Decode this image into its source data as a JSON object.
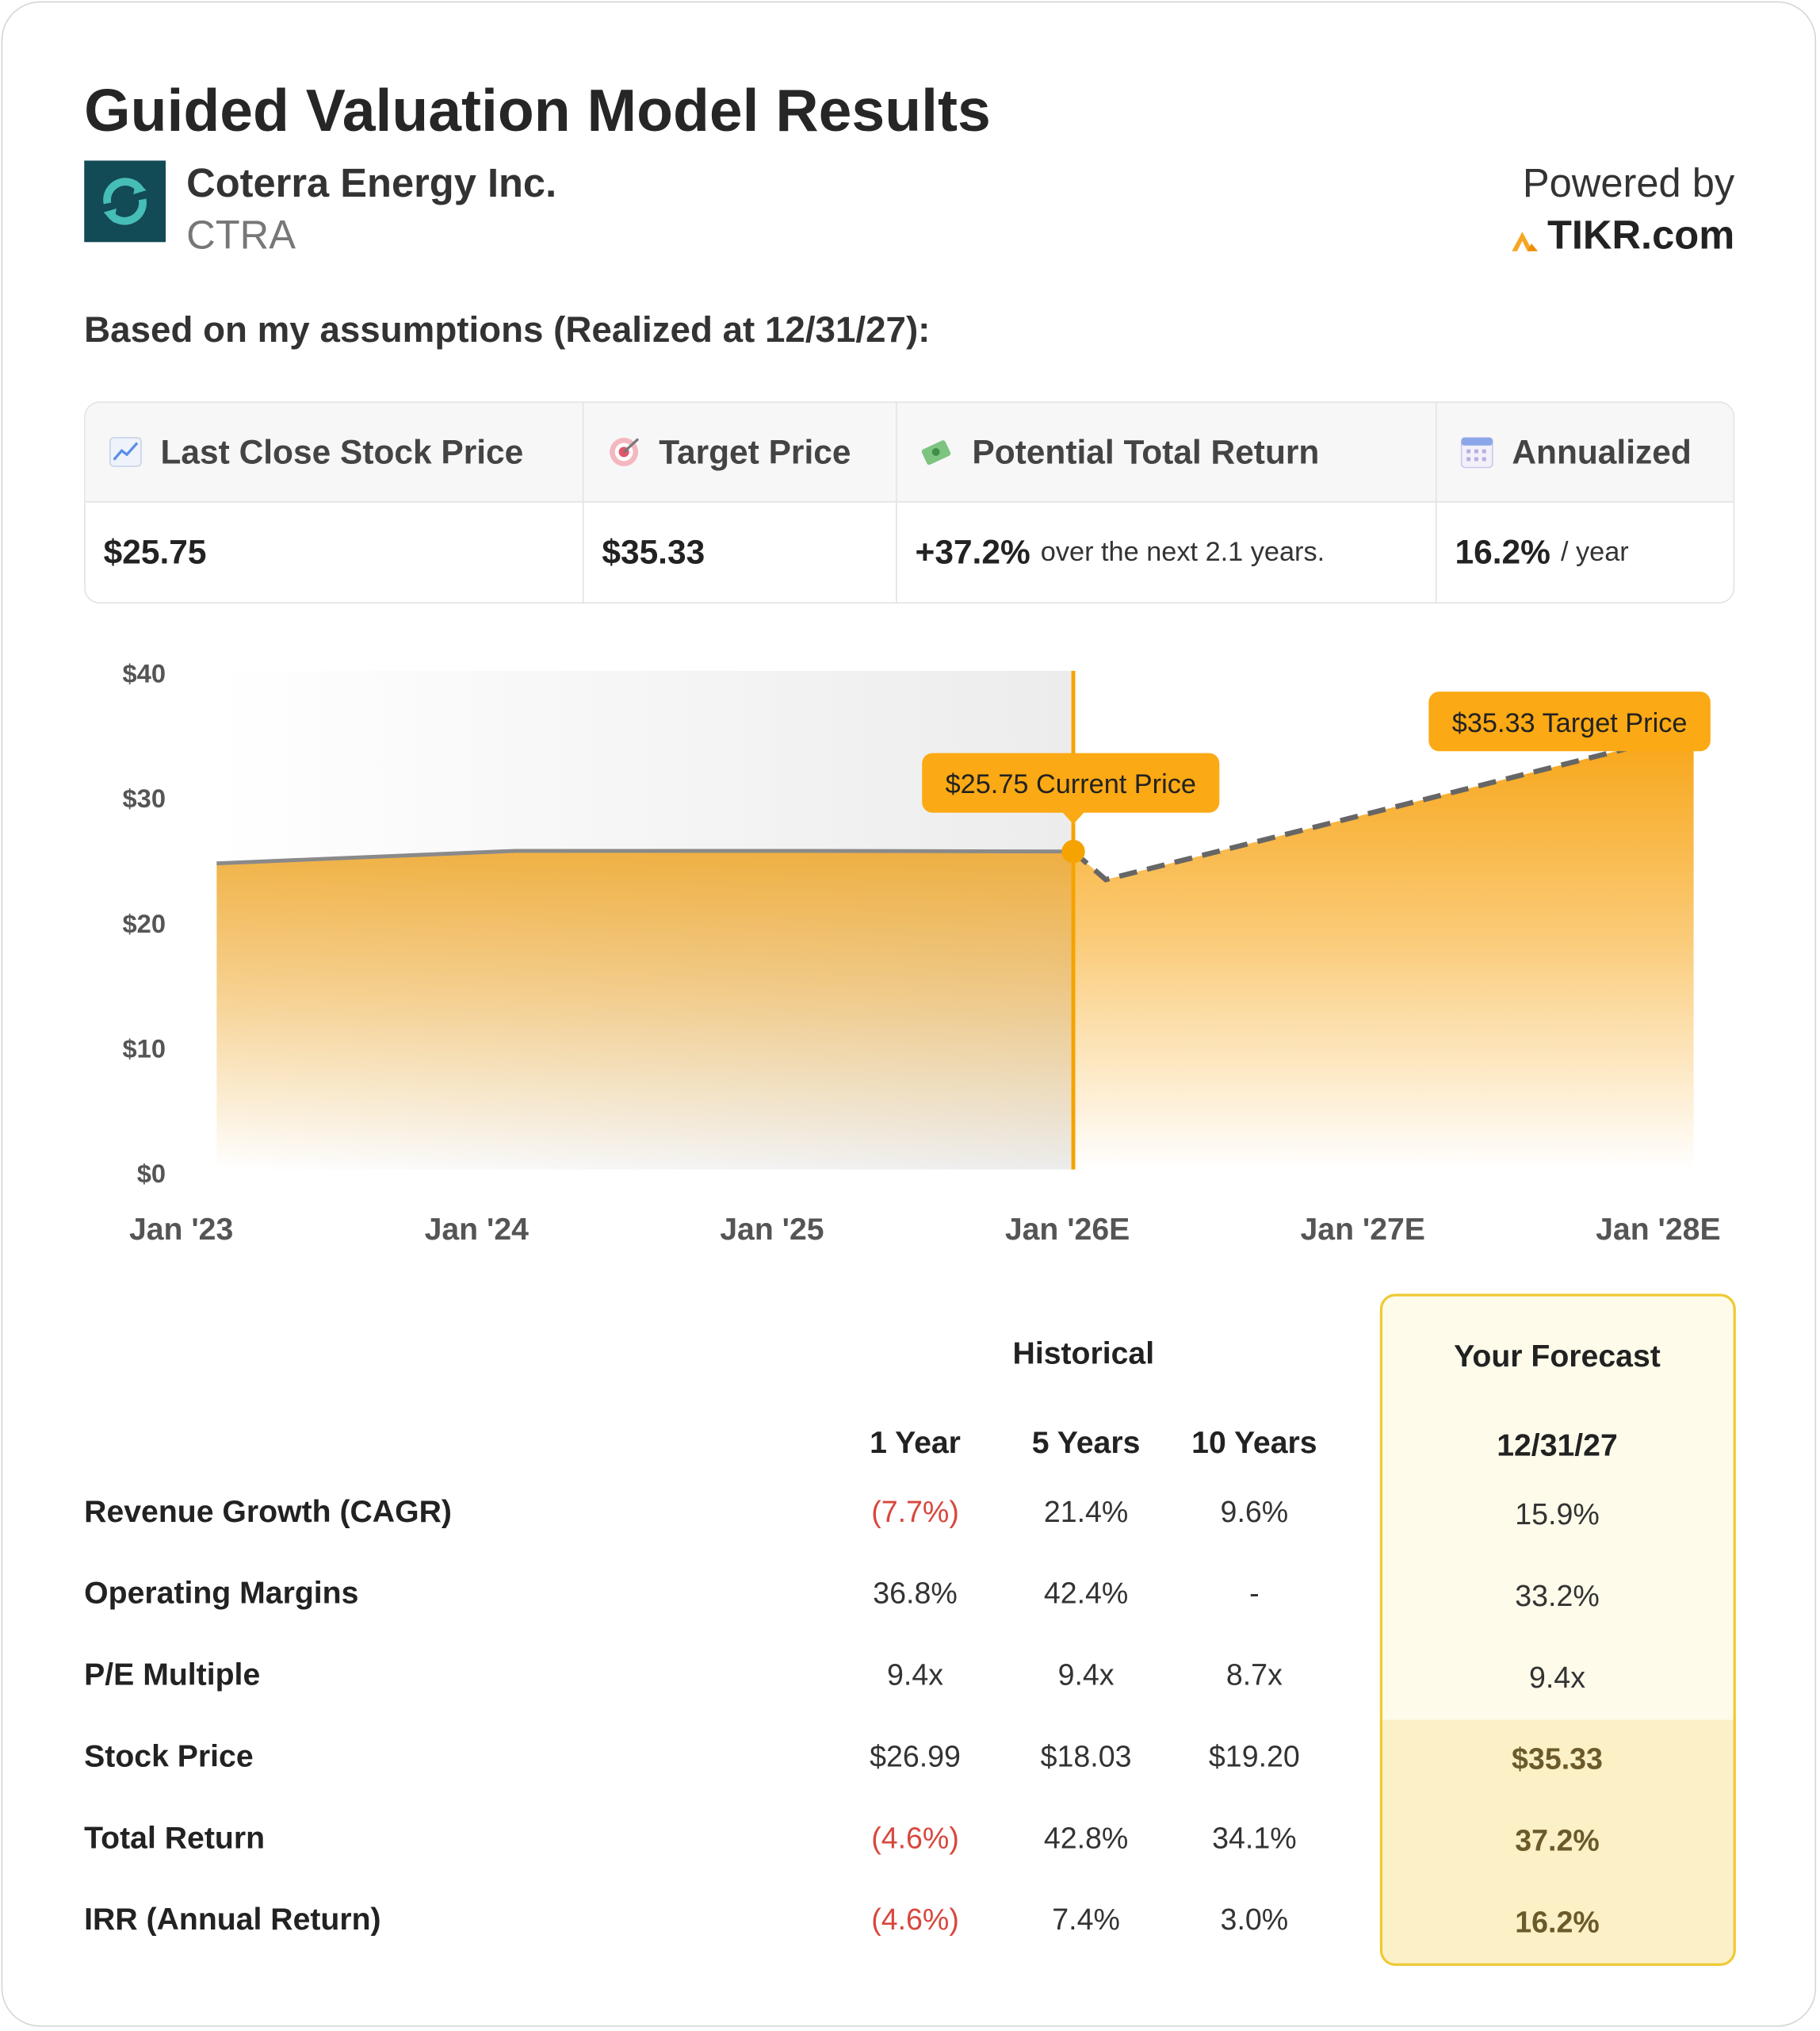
{
  "header": {
    "title": "Guided Valuation Model Results",
    "company": "Coterra Energy Inc.",
    "ticker": "CTRA",
    "powered_by": "Powered by",
    "brand": "TIKR.com"
  },
  "assumptions": "Based on my assumptions (Realized at 12/31/27):",
  "summary": {
    "headers": [
      "Last Close Stock Price",
      "Target Price",
      "Potential Total Return",
      "Annualized"
    ],
    "values": [
      {
        "value": "$25.75"
      },
      {
        "value": "$35.33"
      },
      {
        "value": "+37.2%",
        "note": "over the next 2.1 years."
      },
      {
        "value": "16.2%",
        "note": "/ year"
      }
    ]
  },
  "chart_data": {
    "type": "area",
    "xlim": [
      2023,
      2028
    ],
    "xticks": [
      {
        "value": 2023,
        "label": "Jan '23"
      },
      {
        "value": 2024,
        "label": "Jan '24"
      },
      {
        "value": 2025,
        "label": "Jan '25"
      },
      {
        "value": 2026,
        "label": "Jan '26E"
      },
      {
        "value": 2027,
        "label": "Jan '27E"
      },
      {
        "value": 2028,
        "label": "Jan '28E"
      }
    ],
    "ylim": [
      0,
      40
    ],
    "yticks": [
      {
        "value": 0,
        "label": "$0"
      },
      {
        "value": 10,
        "label": "$10"
      },
      {
        "value": 20,
        "label": "$20"
      },
      {
        "value": 30,
        "label": "$30"
      },
      {
        "value": 40,
        "label": "$40"
      }
    ],
    "series": [
      {
        "color": "#8a8a8a",
        "fill": "#eea424",
        "dashed": false,
        "x": [
          2023.12,
          2024.13,
          2025.13,
          2026.02
        ],
        "values": [
          24.8,
          25.8,
          25.8,
          25.75
        ]
      },
      {
        "color": "#666666",
        "fill": "#f7a516",
        "dashed": true,
        "x": [
          2026.02,
          2026.13,
          2028.12
        ],
        "values": [
          25.75,
          23.5,
          35.33
        ]
      }
    ],
    "annotations": [
      {
        "text": "$25.75 Current Price",
        "x": 2026.02,
        "y": 25.75
      },
      {
        "text": "$35.33 Target Price",
        "x": 2028.12,
        "y": 35.33
      }
    ]
  },
  "table": {
    "group_headers": [
      "Historical",
      "Your Forecast"
    ],
    "columns": [
      "1 Year",
      "5 Years",
      "10 Years",
      "12/31/27"
    ],
    "rows": [
      {
        "label": "Revenue Growth (CAGR)",
        "values": [
          "(7.7%)",
          "21.4%",
          "9.6%",
          "15.9%"
        ]
      },
      {
        "label": "Operating Margins",
        "values": [
          "36.8%",
          "42.4%",
          "-",
          "33.2%"
        ]
      },
      {
        "label": "P/E Multiple",
        "values": [
          "9.4x",
          "9.4x",
          "8.7x",
          "9.4x"
        ]
      },
      {
        "label": "Stock Price",
        "values": [
          "$26.99",
          "$18.03",
          "$19.20",
          "$35.33"
        ]
      },
      {
        "label": "Total Return",
        "values": [
          "(4.6%)",
          "42.8%",
          "34.1%",
          "37.2%"
        ]
      },
      {
        "label": "IRR (Annual Return)",
        "values": [
          "(4.6%)",
          "7.4%",
          "3.0%",
          "16.2%"
        ]
      }
    ]
  }
}
